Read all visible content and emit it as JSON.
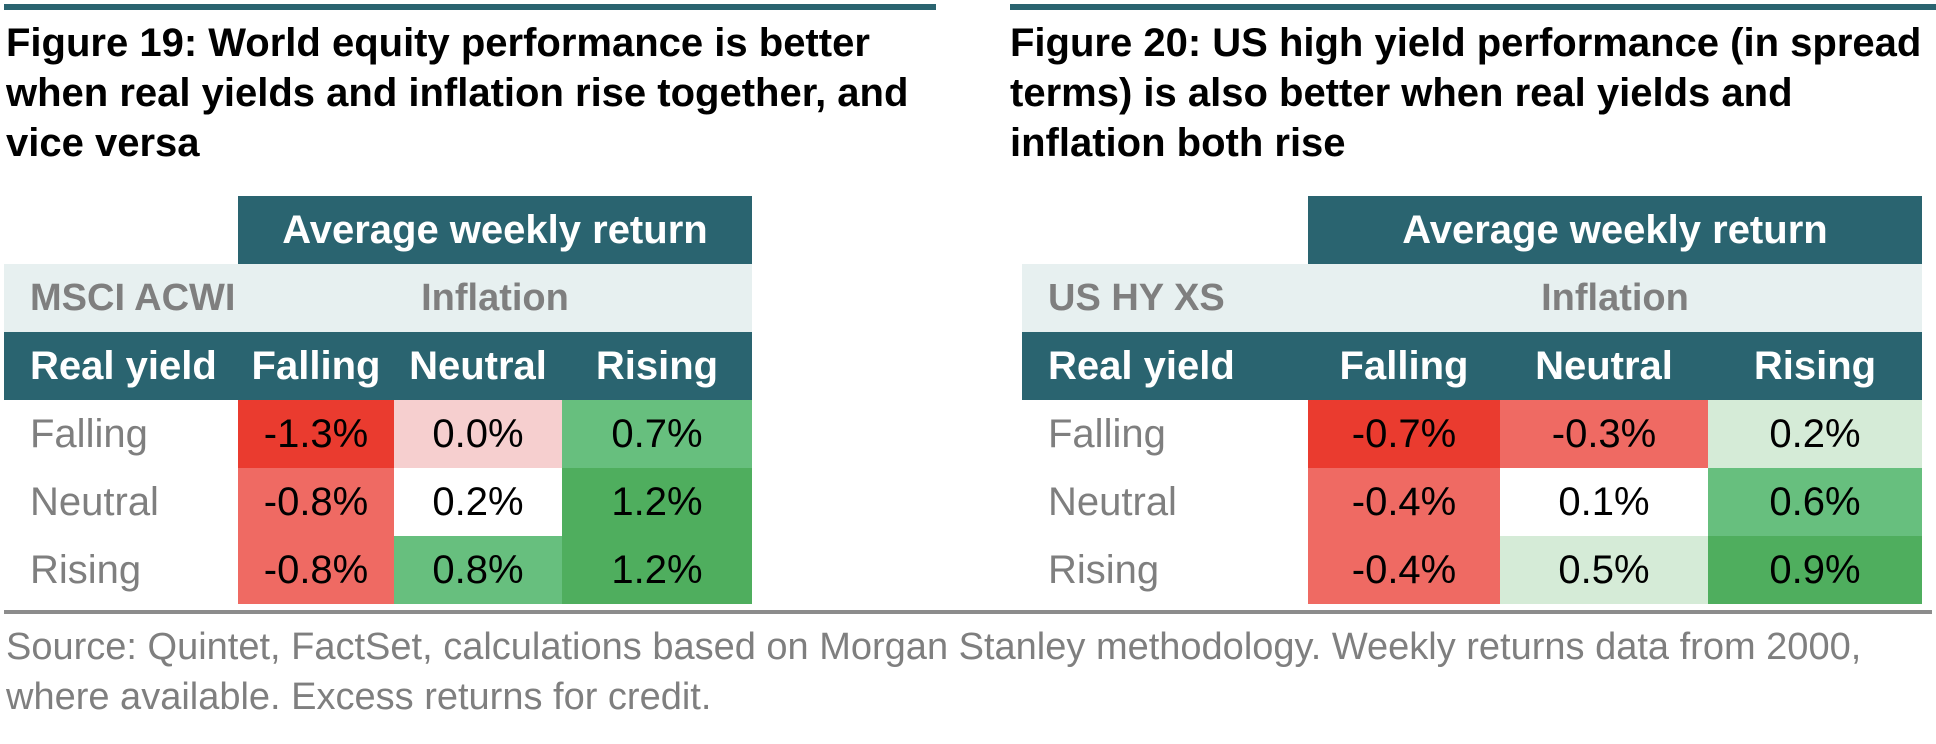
{
  "colors": {
    "teal_header": "#2a6470",
    "light_band": "#e7f0f0",
    "strong_red": "#ea3b2f",
    "medium_red": "#ef6a63",
    "light_red": "#f6cfcf",
    "white": "#ffffff",
    "light_green": "#d5ebd7",
    "medium_green": "#67bf7e",
    "strong_green": "#4fae5e"
  },
  "chart_data": [
    {
      "type": "table",
      "title": "Figure 19: World equity performance is better when real yields and inflation rise together, and vice versa",
      "header": "Average weekly return",
      "index_label": "MSCI ACWI",
      "column_group_label": "Inflation",
      "row_header_label": "Real yield",
      "columns": [
        "Falling",
        "Neutral",
        "Rising"
      ],
      "rows": [
        {
          "label": "Falling",
          "cells": [
            {
              "text": "-1.3%",
              "value": -1.3,
              "color": "#ea3b2f"
            },
            {
              "text": "0.0%",
              "value": 0.0,
              "color": "#f6cfcf"
            },
            {
              "text": "0.7%",
              "value": 0.7,
              "color": "#67bf7e"
            }
          ]
        },
        {
          "label": "Neutral",
          "cells": [
            {
              "text": "-0.8%",
              "value": -0.8,
              "color": "#ef6a63"
            },
            {
              "text": "0.2%",
              "value": 0.2,
              "color": "#ffffff"
            },
            {
              "text": "1.2%",
              "value": 1.2,
              "color": "#4fae5e"
            }
          ]
        },
        {
          "label": "Rising",
          "cells": [
            {
              "text": "-0.8%",
              "value": -0.8,
              "color": "#ef6a63"
            },
            {
              "text": "0.8%",
              "value": 0.8,
              "color": "#67bf7e"
            },
            {
              "text": "1.2%",
              "value": 1.2,
              "color": "#4fae5e"
            }
          ]
        }
      ]
    },
    {
      "type": "table",
      "title": "Figure 20: US high yield performance (in spread terms) is also better when real yields and inflation both rise",
      "header": "Average weekly return",
      "index_label": "US HY XS",
      "column_group_label": "Inflation",
      "row_header_label": "Real yield",
      "columns": [
        "Falling",
        "Neutral",
        "Rising"
      ],
      "rows": [
        {
          "label": "Falling",
          "cells": [
            {
              "text": "-0.7%",
              "value": -0.7,
              "color": "#ea3b2f"
            },
            {
              "text": "-0.3%",
              "value": -0.3,
              "color": "#ef6a63"
            },
            {
              "text": "0.2%",
              "value": 0.2,
              "color": "#d5ebd7"
            }
          ]
        },
        {
          "label": "Neutral",
          "cells": [
            {
              "text": "-0.4%",
              "value": -0.4,
              "color": "#ef6a63"
            },
            {
              "text": "0.1%",
              "value": 0.1,
              "color": "#ffffff"
            },
            {
              "text": "0.6%",
              "value": 0.6,
              "color": "#67bf7e"
            }
          ]
        },
        {
          "label": "Rising",
          "cells": [
            {
              "text": "-0.4%",
              "value": -0.4,
              "color": "#ef6a63"
            },
            {
              "text": "0.5%",
              "value": 0.5,
              "color": "#d5ebd7"
            },
            {
              "text": "0.9%",
              "value": 0.9,
              "color": "#4fae5e"
            }
          ]
        }
      ]
    }
  ],
  "source_note": "Source: Quintet, FactSet, calculations based on Morgan Stanley methodology. Weekly returns data from 2000, where available. Excess returns for credit."
}
